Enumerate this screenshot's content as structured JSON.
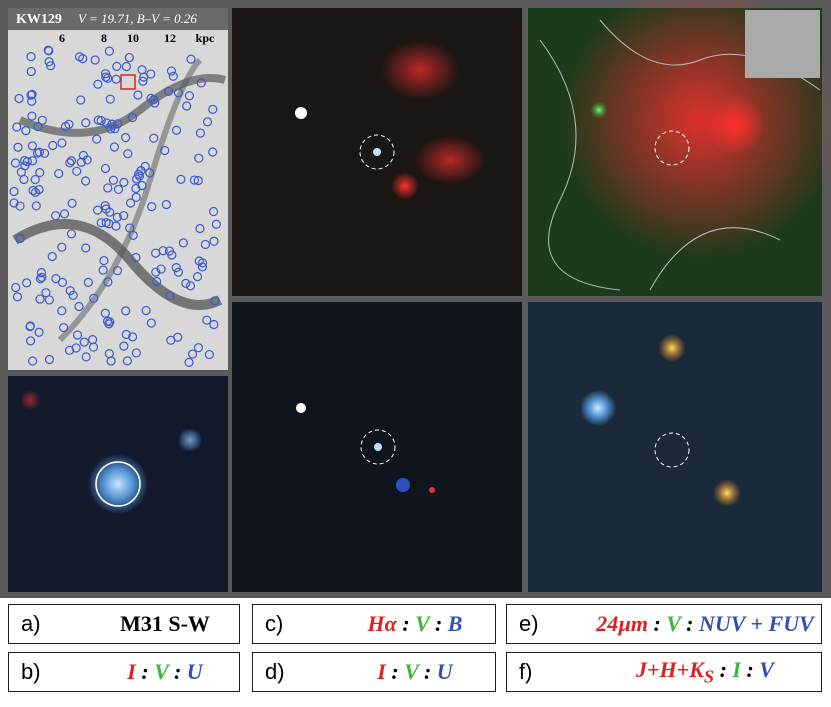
{
  "header": {
    "id": "KW129",
    "photometry": "V = 19.71, B–V = 0.26"
  },
  "scale_labels": [
    "6",
    "8",
    "10",
    "12",
    "kpc"
  ],
  "captions": [
    {
      "letter": "a)",
      "parts": [
        {
          "text": "M31 S-W",
          "color": "#000000"
        }
      ]
    },
    {
      "letter": "c)",
      "parts": [
        {
          "text": "Hα",
          "color": "#e02020"
        },
        {
          "text": " : ",
          "color": "#000000"
        },
        {
          "text": "V",
          "color": "#3bb53b"
        },
        {
          "text": " : ",
          "color": "#000000"
        },
        {
          "text": "B",
          "color": "#3050b0"
        }
      ]
    },
    {
      "letter": "e)",
      "parts": [
        {
          "text": "24µm",
          "color": "#e02020"
        },
        {
          "text": " : ",
          "color": "#000000"
        },
        {
          "text": "V",
          "color": "#3bb53b"
        },
        {
          "text": " : ",
          "color": "#000000"
        },
        {
          "text": "NUV + FUV",
          "color": "#3050b0"
        }
      ]
    },
    {
      "letter": "b)",
      "parts": [
        {
          "text": "I",
          "color": "#e02020"
        },
        {
          "text": " : ",
          "color": "#000000"
        },
        {
          "text": "V",
          "color": "#3bb53b"
        },
        {
          "text": " : ",
          "color": "#000000"
        },
        {
          "text": "U",
          "color": "#3050b0"
        }
      ]
    },
    {
      "letter": "d)",
      "parts": [
        {
          "text": "I",
          "color": "#e02020"
        },
        {
          "text": " : ",
          "color": "#000000"
        },
        {
          "text": "V",
          "color": "#3bb53b"
        },
        {
          "text": " : ",
          "color": "#000000"
        },
        {
          "text": "U",
          "color": "#3050b0"
        }
      ]
    },
    {
      "letter": "f)",
      "parts": [
        {
          "text": "J+H+K",
          "color": "#e02020"
        },
        {
          "text": "S",
          "color": "#e02020",
          "sub": true
        },
        {
          "text": " : ",
          "color": "#000000"
        },
        {
          "text": "I",
          "color": "#3bb53b"
        },
        {
          "text": " : ",
          "color": "#000000"
        },
        {
          "text": "V",
          "color": "#3050b0"
        }
      ]
    }
  ]
}
